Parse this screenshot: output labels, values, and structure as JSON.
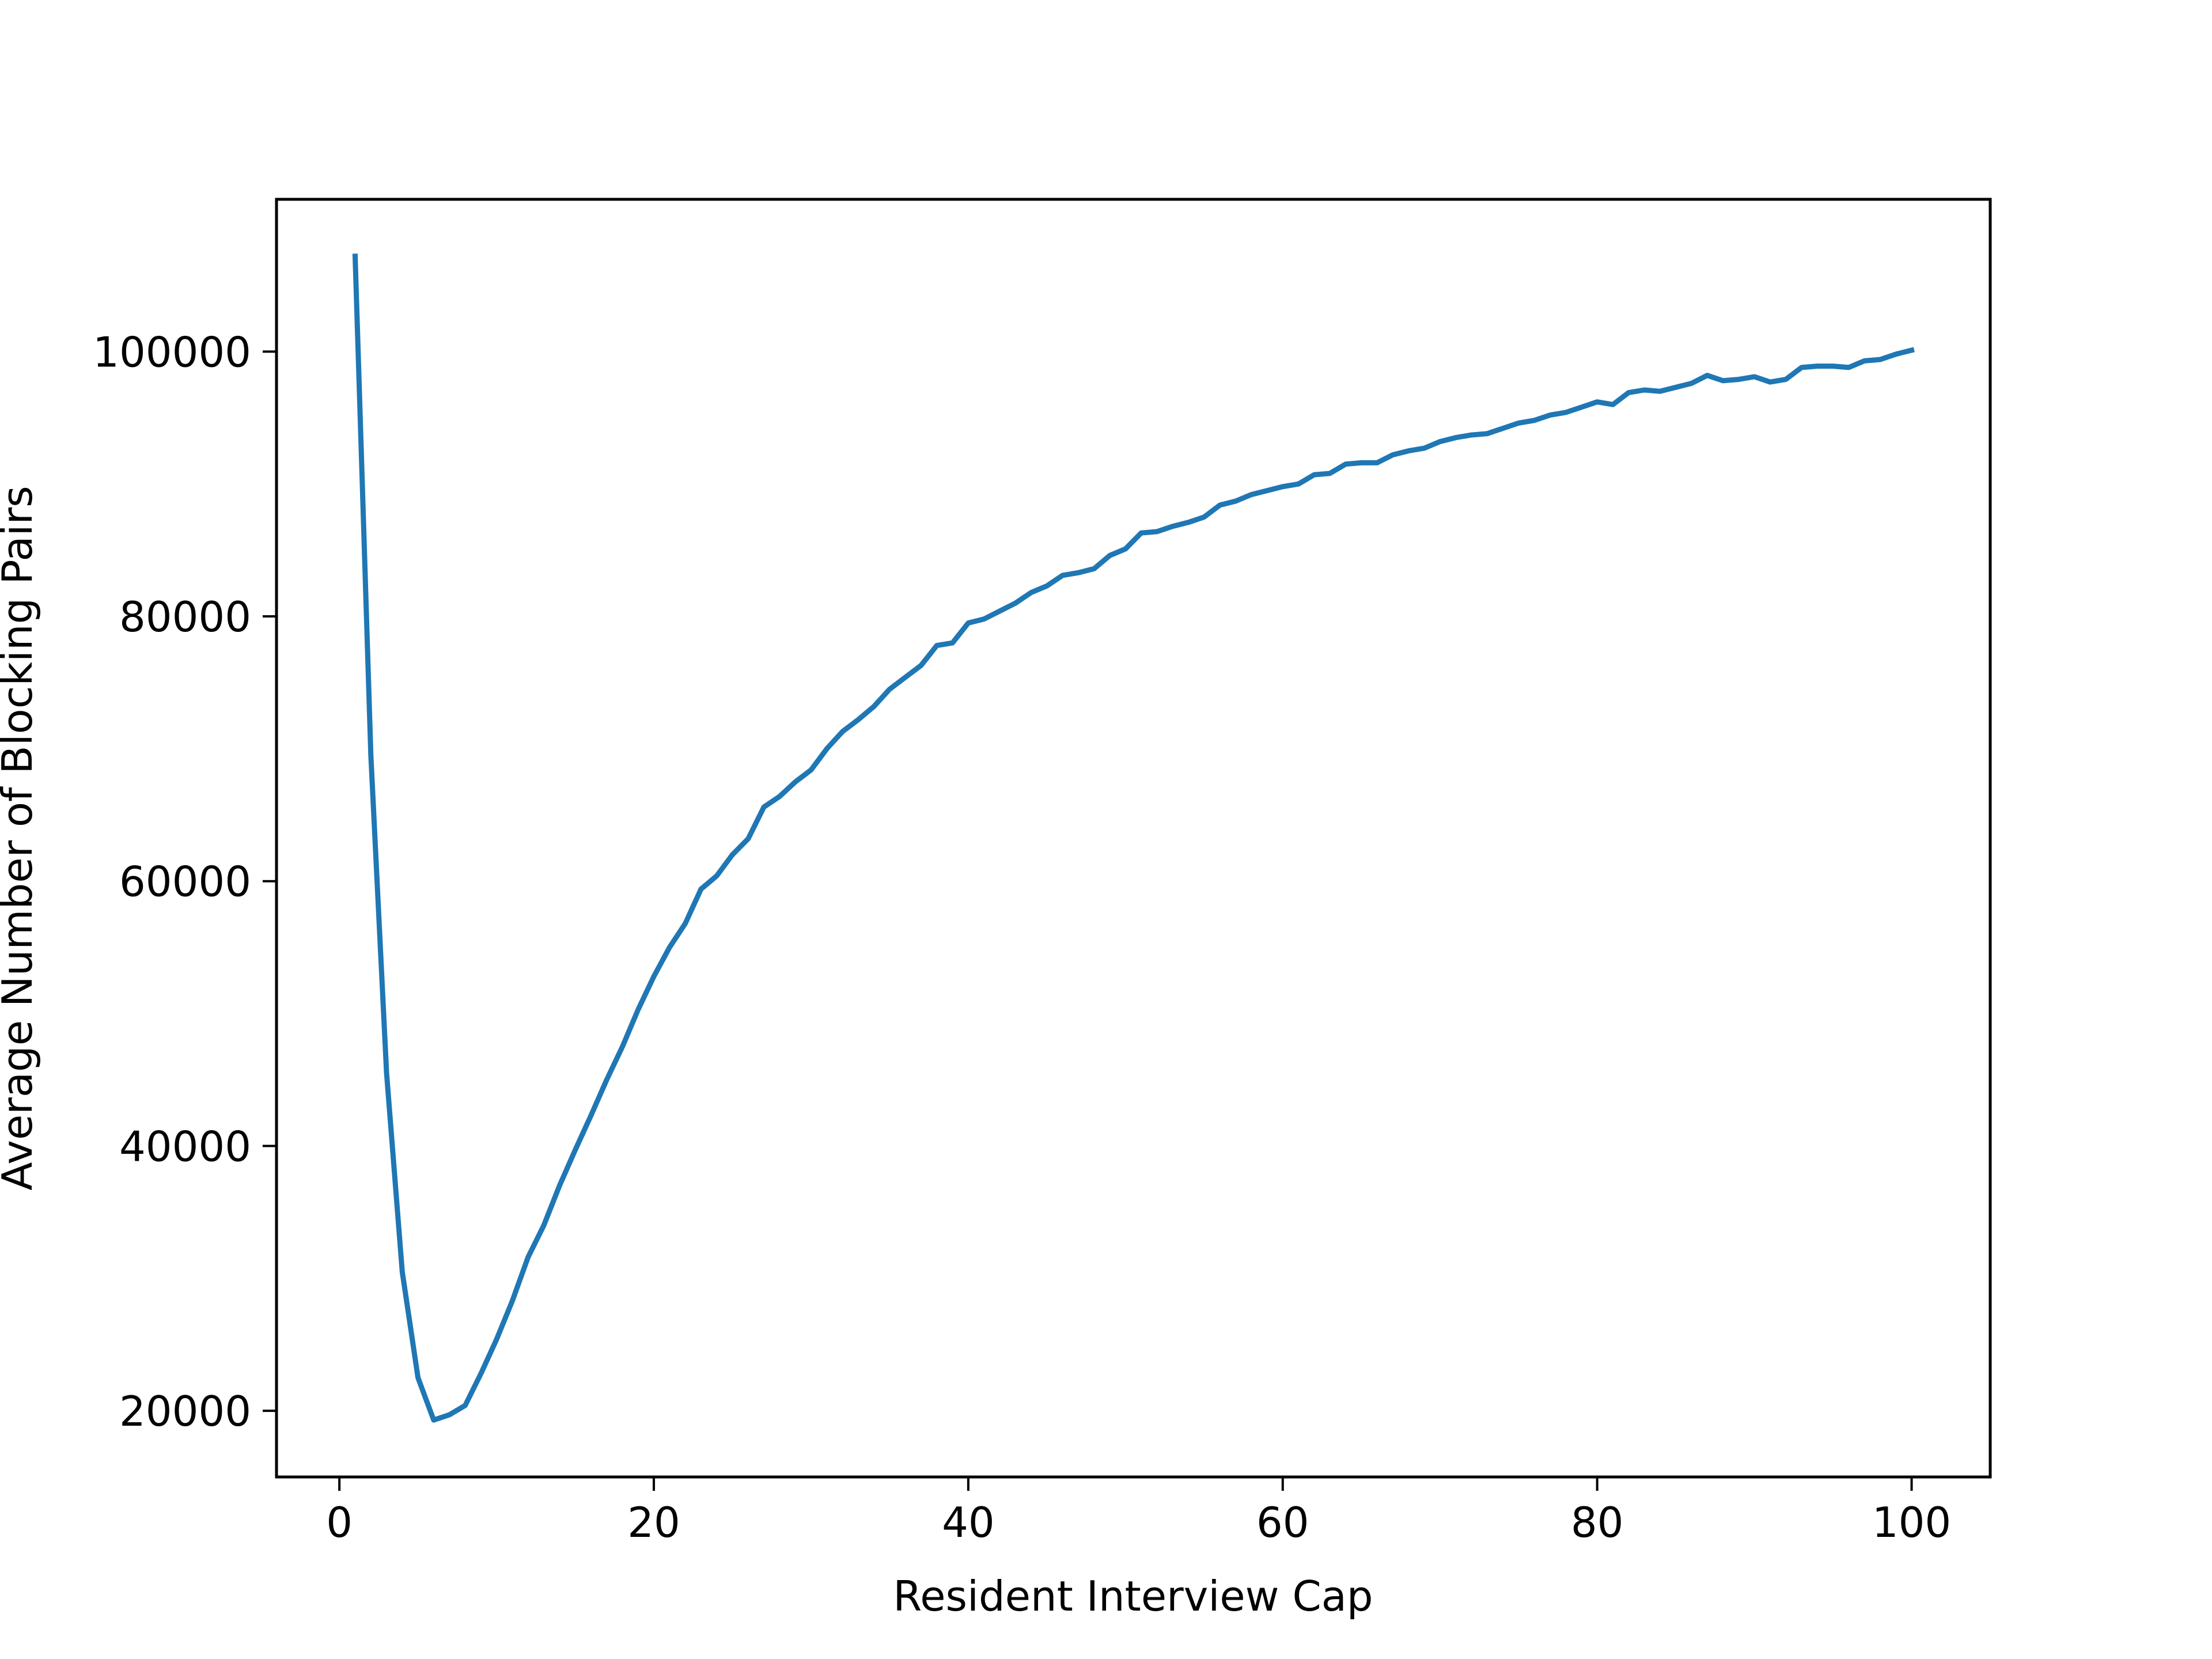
{
  "chart_data": {
    "type": "line",
    "title": "",
    "xlabel": "Resident Interview Cap",
    "ylabel": "Average Number of Blocking Pairs",
    "xlim": [
      -4,
      105
    ],
    "ylim": [
      15000,
      111500
    ],
    "xticks": [
      0,
      20,
      40,
      60,
      80,
      100
    ],
    "yticks": [
      20000,
      40000,
      60000,
      80000,
      100000
    ],
    "grid": false,
    "legend": "none",
    "line_color": "#1f77b4",
    "series": [
      {
        "x": [
          1,
          2,
          3,
          4,
          5,
          6,
          7,
          8,
          9,
          10,
          11,
          12,
          13,
          14,
          15,
          16,
          17,
          18,
          19,
          20,
          21,
          22,
          23,
          24,
          25,
          26,
          27,
          28,
          29,
          30,
          31,
          32,
          33,
          34,
          35,
          36,
          37,
          38,
          39,
          40,
          41,
          42,
          43,
          44,
          45,
          46,
          47,
          48,
          49,
          50,
          51,
          52,
          53,
          54,
          55,
          56,
          57,
          58,
          59,
          60,
          61,
          62,
          63,
          64,
          65,
          66,
          67,
          68,
          69,
          70,
          71,
          72,
          73,
          74,
          75,
          76,
          77,
          78,
          79,
          80,
          81,
          82,
          83,
          84,
          85,
          86,
          87,
          88,
          89,
          90,
          91,
          92,
          93,
          94,
          95,
          96,
          97,
          98,
          99,
          100
        ],
        "values": [
          107200,
          69500,
          45500,
          30500,
          22500,
          19300,
          19700,
          20400,
          22800,
          25400,
          28300,
          31600,
          34000,
          37000,
          39700,
          42300,
          45000,
          47500,
          50300,
          52800,
          55000,
          56800,
          59400,
          60400,
          62000,
          63200,
          65600,
          66400,
          67500,
          68400,
          70000,
          71300,
          72200,
          73200,
          74500,
          75400,
          76300,
          77800,
          78000,
          79500,
          79800,
          80400,
          81000,
          81800,
          82300,
          83100,
          83300,
          83600,
          84600,
          85100,
          86300,
          86400,
          86800,
          87100,
          87500,
          88400,
          88700,
          89200,
          89500,
          89800,
          90000,
          90700,
          90800,
          91500,
          91600,
          91600,
          92200,
          92500,
          92700,
          93200,
          93500,
          93700,
          93800,
          94200,
          94600,
          94800,
          95200,
          95400,
          95800,
          96200,
          96000,
          96900,
          97100,
          97000,
          97300,
          97600,
          98200,
          97800,
          97900,
          98100,
          97700,
          97900,
          98800,
          98900,
          98900,
          98800,
          99300,
          99400,
          99800,
          100100
        ]
      }
    ]
  }
}
